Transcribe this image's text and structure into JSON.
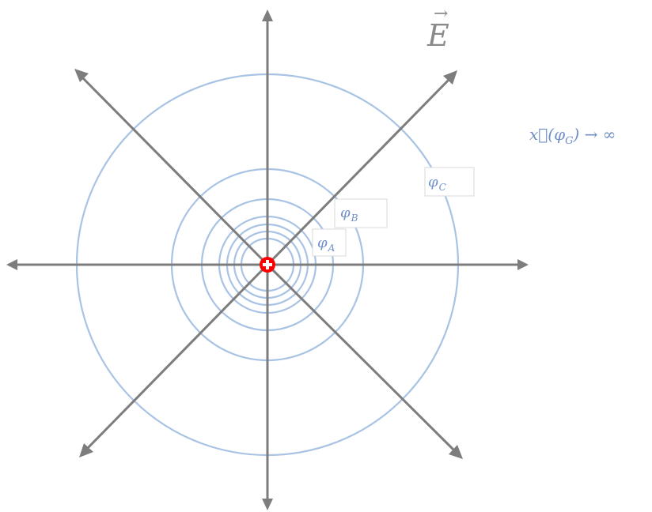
{
  "diagram": {
    "field_symbol": "E",
    "field_vector_mark": "→",
    "labels": {
      "phi_a_main": "φ",
      "phi_a_sub": "A",
      "phi_b_main": "φ",
      "phi_b_sub": "B",
      "phi_c_main": "φ",
      "phi_c_sub": "C"
    },
    "limit_expression": {
      "prefix": "x⃗(φ",
      "sub": "G",
      "suffix": ") → ∞"
    }
  },
  "colors": {
    "field_lines": "#7d7d7d",
    "equipotentials": "#a9c3e4",
    "charge_fill": "#ff0000",
    "charge_symbol": "#ffffff",
    "math_text": "#6f8fc7"
  }
}
